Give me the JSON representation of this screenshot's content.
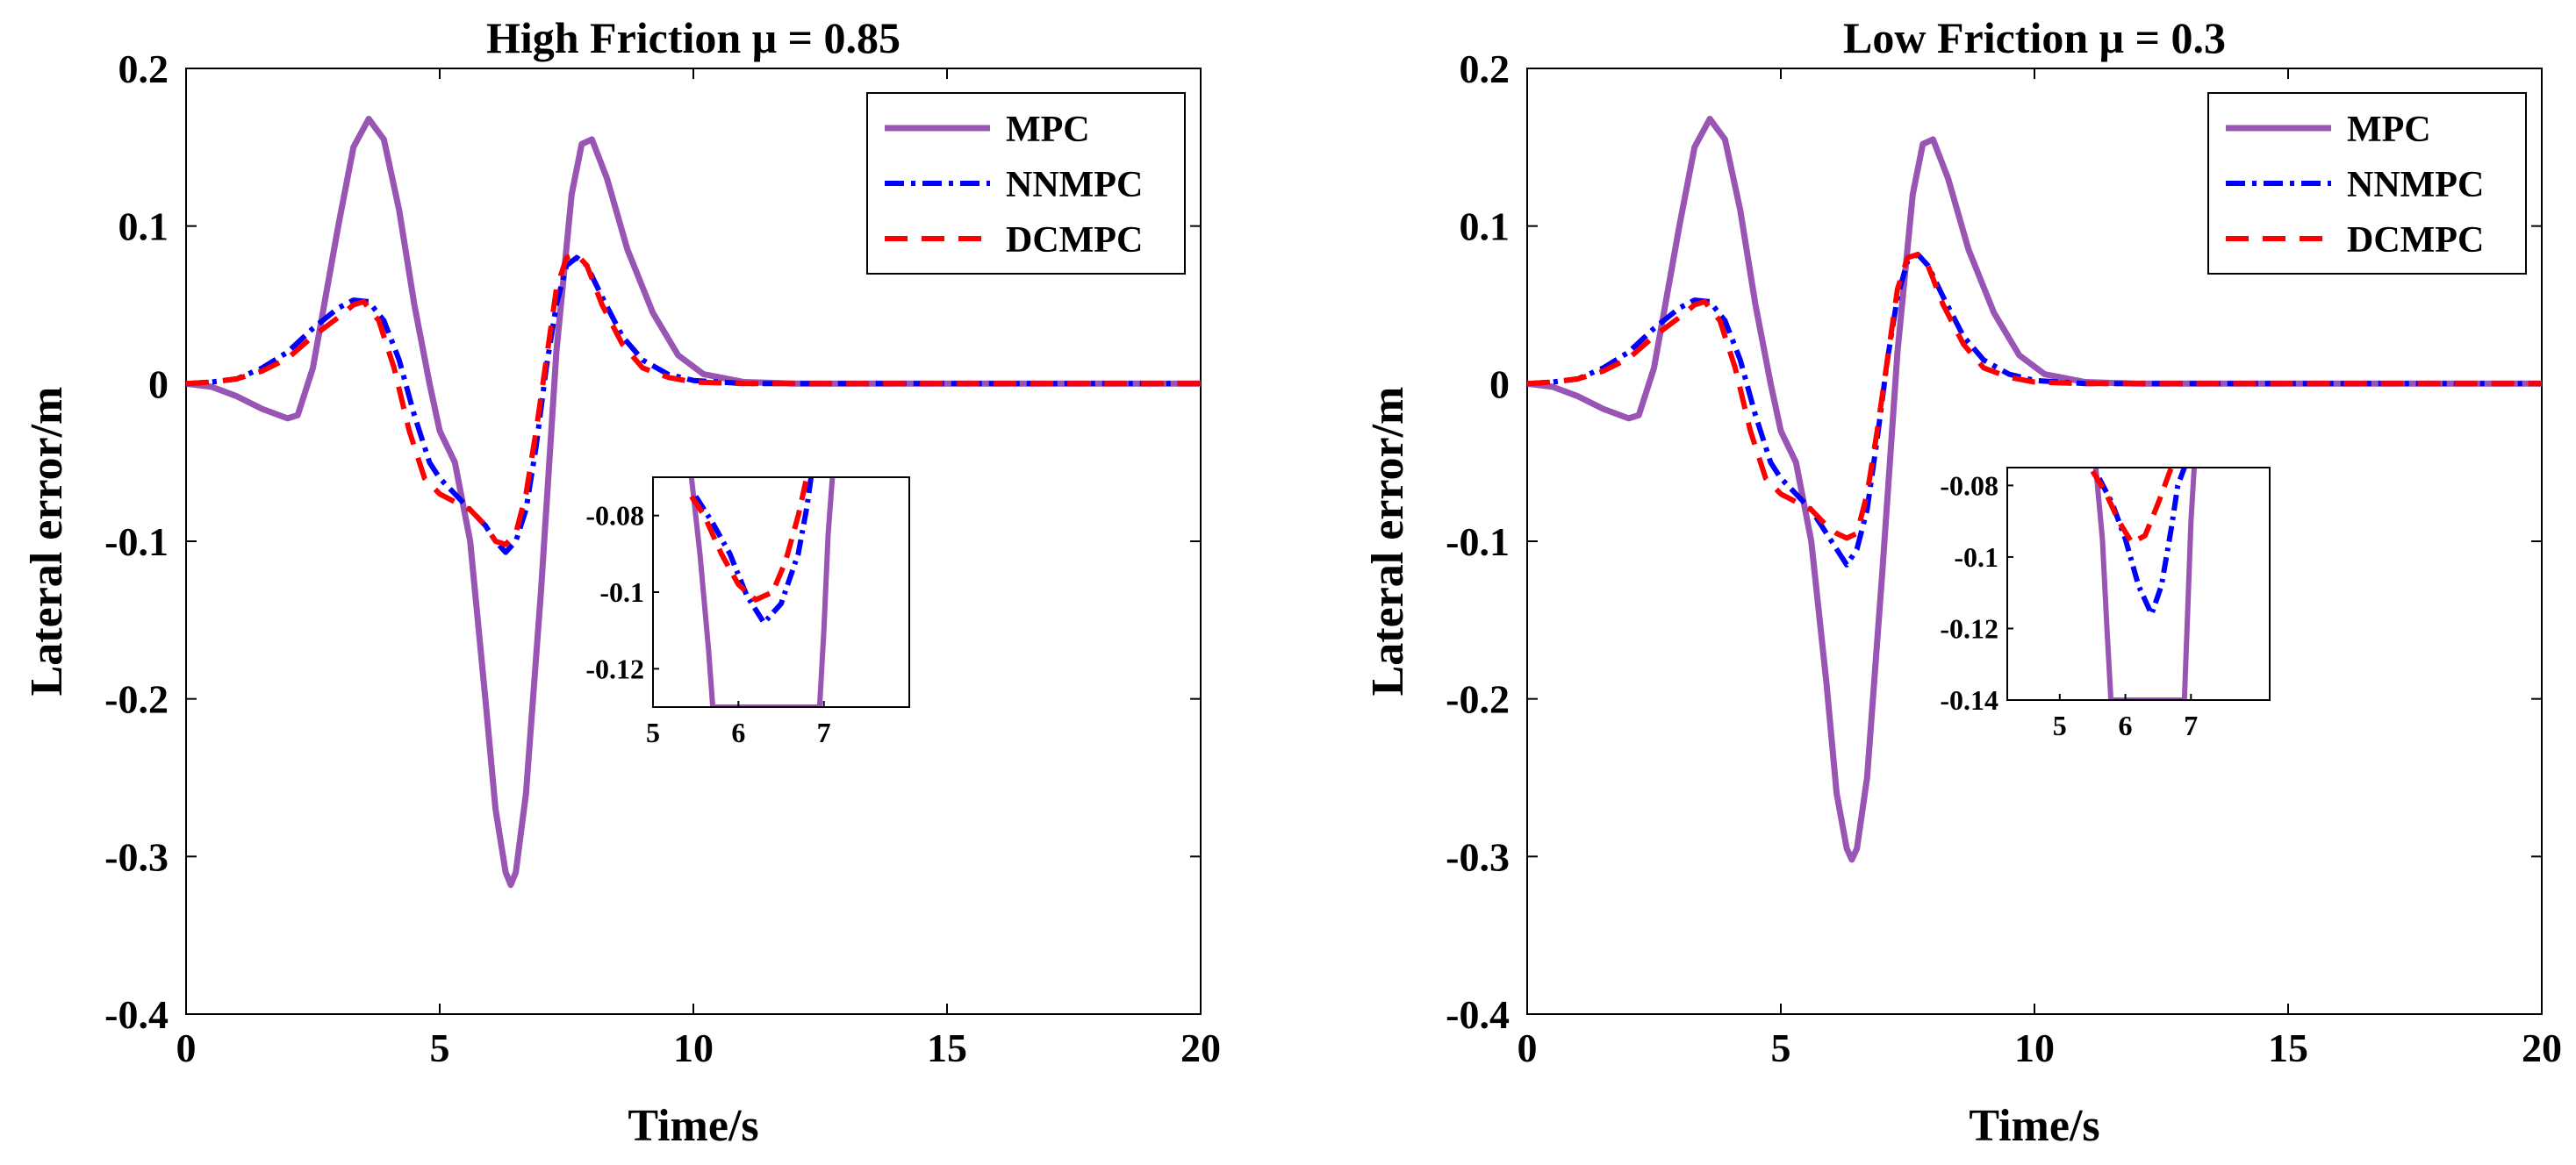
{
  "colors": {
    "mpc": "#9955b3",
    "nnmpc": "#0000ff",
    "dcmpc": "#ff0000",
    "axis": "#000000"
  },
  "legend": [
    "MPC",
    "NNMPC",
    "DCMPC"
  ],
  "chart_data": [
    {
      "type": "line",
      "title": "High Friction μ = 0.85",
      "xlabel": "Time/s",
      "ylabel": "Lateral error/m",
      "xlim": [
        0,
        20
      ],
      "ylim": [
        -0.4,
        0.2
      ],
      "xticks": [
        "0",
        "5",
        "10",
        "15",
        "20"
      ],
      "yticks": [
        "-0.4",
        "-0.3",
        "-0.2",
        "-0.1",
        "0",
        "0.1",
        "0.2"
      ],
      "legend_position": "top-right",
      "series": [
        {
          "name": "MPC",
          "x": [
            0,
            0.5,
            1,
            1.5,
            2,
            2.2,
            2.5,
            3,
            3.3,
            3.6,
            3.9,
            4.2,
            4.5,
            4.8,
            5,
            5.3,
            5.6,
            5.9,
            6.1,
            6.3,
            6.4,
            6.5,
            6.7,
            7,
            7.3,
            7.6,
            7.8,
            8,
            8.3,
            8.7,
            9.2,
            9.7,
            10.2,
            11,
            12,
            14,
            20
          ],
          "y": [
            0,
            -0.002,
            -0.008,
            -0.016,
            -0.022,
            -0.02,
            0.01,
            0.1,
            0.15,
            0.168,
            0.155,
            0.11,
            0.05,
            0,
            -0.03,
            -0.05,
            -0.1,
            -0.2,
            -0.27,
            -0.31,
            -0.318,
            -0.31,
            -0.26,
            -0.13,
            0.02,
            0.12,
            0.152,
            0.155,
            0.13,
            0.085,
            0.045,
            0.018,
            0.006,
            0.001,
            0,
            0,
            0
          ]
        },
        {
          "name": "NNMPC",
          "x": [
            0,
            0.5,
            1,
            1.5,
            2,
            2.5,
            3,
            3.3,
            3.6,
            3.9,
            4.2,
            4.5,
            4.8,
            5,
            5.3,
            5.6,
            5.9,
            6.1,
            6.3,
            6.5,
            6.7,
            6.9,
            7.1,
            7.3,
            7.5,
            7.7,
            7.9,
            8.2,
            8.6,
            9,
            9.5,
            10,
            11,
            12,
            20
          ],
          "y": [
            0,
            0.001,
            0.003,
            0.01,
            0.02,
            0.035,
            0.048,
            0.053,
            0.052,
            0.04,
            0.015,
            -0.02,
            -0.05,
            -0.06,
            -0.07,
            -0.08,
            -0.09,
            -0.1,
            -0.107,
            -0.1,
            -0.08,
            -0.04,
            0.01,
            0.05,
            0.075,
            0.08,
            0.075,
            0.055,
            0.03,
            0.015,
            0.006,
            0.002,
            0,
            0,
            0
          ]
        },
        {
          "name": "DCMPC",
          "x": [
            0,
            0.5,
            1,
            1.5,
            2,
            2.5,
            3,
            3.3,
            3.5,
            3.8,
            4.1,
            4.4,
            4.7,
            5,
            5.3,
            5.6,
            5.9,
            6.1,
            6.3,
            6.5,
            6.7,
            6.9,
            7.1,
            7.3,
            7.5,
            7.7,
            7.9,
            8.2,
            8.6,
            9,
            9.5,
            10,
            11,
            12,
            20
          ],
          "y": [
            0,
            0.001,
            0.003,
            0.008,
            0.016,
            0.03,
            0.042,
            0.05,
            0.052,
            0.04,
            0.01,
            -0.03,
            -0.06,
            -0.07,
            -0.075,
            -0.08,
            -0.09,
            -0.1,
            -0.102,
            -0.095,
            -0.07,
            -0.03,
            0.015,
            0.06,
            0.08,
            0.082,
            0.075,
            0.05,
            0.025,
            0.01,
            0.004,
            0.001,
            0,
            0,
            0
          ]
        }
      ],
      "inset": {
        "xlim": [
          5,
          8
        ],
        "ylim": [
          -0.13,
          -0.07
        ],
        "xticks": [
          "5",
          "6",
          "7"
        ],
        "yticks": [
          "-0.08",
          "-0.1",
          "-0.12"
        ],
        "series": [
          {
            "name": "MPC",
            "x": [
              5.45,
              5.55,
              5.65,
              5.7,
              6.95,
              7,
              7.05,
              7.1
            ],
            "y": [
              -0.07,
              -0.09,
              -0.115,
              -0.13,
              -0.13,
              -0.11,
              -0.085,
              -0.07
            ]
          },
          {
            "name": "NNMPC",
            "x": [
              5.5,
              5.7,
              5.9,
              6.1,
              6.3,
              6.5,
              6.7,
              6.8,
              6.85
            ],
            "y": [
              -0.075,
              -0.082,
              -0.09,
              -0.101,
              -0.108,
              -0.103,
              -0.09,
              -0.078,
              -0.07
            ]
          },
          {
            "name": "DCMPC",
            "x": [
              5.45,
              5.6,
              5.8,
              6,
              6.2,
              6.4,
              6.55,
              6.7,
              6.8
            ],
            "y": [
              -0.075,
              -0.08,
              -0.09,
              -0.098,
              -0.102,
              -0.1,
              -0.092,
              -0.08,
              -0.07
            ]
          }
        ]
      }
    },
    {
      "type": "line",
      "title": "Low Friction μ = 0.3",
      "xlabel": "Time/s",
      "ylabel": "Lateral error/m",
      "xlim": [
        0,
        20
      ],
      "ylim": [
        -0.4,
        0.2
      ],
      "xticks": [
        "0",
        "5",
        "10",
        "15",
        "20"
      ],
      "yticks": [
        "-0.4",
        "-0.3",
        "-0.2",
        "-0.1",
        "0",
        "0.1",
        "0.2"
      ],
      "legend_position": "top-right",
      "series": [
        {
          "name": "MPC",
          "x": [
            0,
            0.5,
            1,
            1.5,
            2,
            2.2,
            2.5,
            3,
            3.3,
            3.6,
            3.9,
            4.2,
            4.5,
            4.8,
            5,
            5.3,
            5.6,
            5.9,
            6.1,
            6.3,
            6.4,
            6.5,
            6.7,
            7,
            7.3,
            7.6,
            7.8,
            8,
            8.3,
            8.7,
            9.2,
            9.7,
            10.2,
            11,
            12,
            14,
            20
          ],
          "y": [
            0,
            -0.002,
            -0.008,
            -0.016,
            -0.022,
            -0.02,
            0.01,
            0.1,
            0.15,
            0.168,
            0.155,
            0.11,
            0.05,
            0,
            -0.03,
            -0.05,
            -0.1,
            -0.19,
            -0.26,
            -0.295,
            -0.302,
            -0.295,
            -0.25,
            -0.12,
            0.02,
            0.12,
            0.152,
            0.155,
            0.13,
            0.085,
            0.045,
            0.018,
            0.006,
            0.001,
            0,
            0,
            0
          ]
        },
        {
          "name": "NNMPC",
          "x": [
            0,
            0.5,
            1,
            1.5,
            2,
            2.5,
            3,
            3.3,
            3.6,
            3.9,
            4.2,
            4.5,
            4.8,
            5,
            5.3,
            5.6,
            5.9,
            6.1,
            6.3,
            6.5,
            6.7,
            6.9,
            7.1,
            7.3,
            7.5,
            7.7,
            7.9,
            8.2,
            8.6,
            9,
            9.5,
            10,
            11,
            12,
            20
          ],
          "y": [
            0,
            0.001,
            0.003,
            0.01,
            0.02,
            0.035,
            0.048,
            0.053,
            0.052,
            0.04,
            0.015,
            -0.02,
            -0.05,
            -0.06,
            -0.07,
            -0.08,
            -0.095,
            -0.105,
            -0.115,
            -0.105,
            -0.08,
            -0.035,
            0.015,
            0.055,
            0.078,
            0.082,
            0.075,
            0.055,
            0.03,
            0.015,
            0.006,
            0.002,
            0,
            0,
            0
          ]
        },
        {
          "name": "DCMPC",
          "x": [
            0,
            0.5,
            1,
            1.5,
            2,
            2.5,
            3,
            3.3,
            3.5,
            3.8,
            4.1,
            4.4,
            4.7,
            5,
            5.3,
            5.6,
            5.9,
            6.1,
            6.3,
            6.5,
            6.7,
            6.9,
            7.1,
            7.3,
            7.5,
            7.7,
            7.9,
            8.2,
            8.6,
            9,
            9.5,
            10,
            11,
            12,
            20
          ],
          "y": [
            0,
            0.001,
            0.003,
            0.008,
            0.016,
            0.03,
            0.042,
            0.05,
            0.052,
            0.04,
            0.01,
            -0.03,
            -0.06,
            -0.07,
            -0.075,
            -0.08,
            -0.09,
            -0.095,
            -0.098,
            -0.095,
            -0.07,
            -0.03,
            0.015,
            0.06,
            0.08,
            0.082,
            0.075,
            0.05,
            0.025,
            0.01,
            0.004,
            0.001,
            0,
            0,
            0
          ]
        }
      ],
      "inset": {
        "xlim": [
          4.2,
          8.2
        ],
        "ylim": [
          -0.14,
          -0.075
        ],
        "xticks": [
          "5",
          "6",
          "7"
        ],
        "yticks": [
          "-0.08",
          "-0.1",
          "-0.12",
          "-0.14"
        ],
        "series": [
          {
            "name": "MPC",
            "x": [
              5.55,
              5.65,
              5.72,
              5.78,
              6.9,
              6.95,
              7,
              7.05
            ],
            "y": [
              -0.075,
              -0.095,
              -0.12,
              -0.14,
              -0.14,
              -0.115,
              -0.09,
              -0.075
            ]
          },
          {
            "name": "NNMPC",
            "x": [
              5.6,
              5.8,
              6,
              6.2,
              6.4,
              6.55,
              6.7,
              6.8,
              6.9
            ],
            "y": [
              -0.078,
              -0.085,
              -0.095,
              -0.108,
              -0.116,
              -0.108,
              -0.092,
              -0.08,
              -0.075
            ]
          },
          {
            "name": "DCMPC",
            "x": [
              5.5,
              5.7,
              5.9,
              6.1,
              6.3,
              6.5,
              6.6,
              6.7
            ],
            "y": [
              -0.076,
              -0.082,
              -0.09,
              -0.096,
              -0.094,
              -0.085,
              -0.08,
              -0.075
            ]
          }
        ]
      }
    }
  ]
}
